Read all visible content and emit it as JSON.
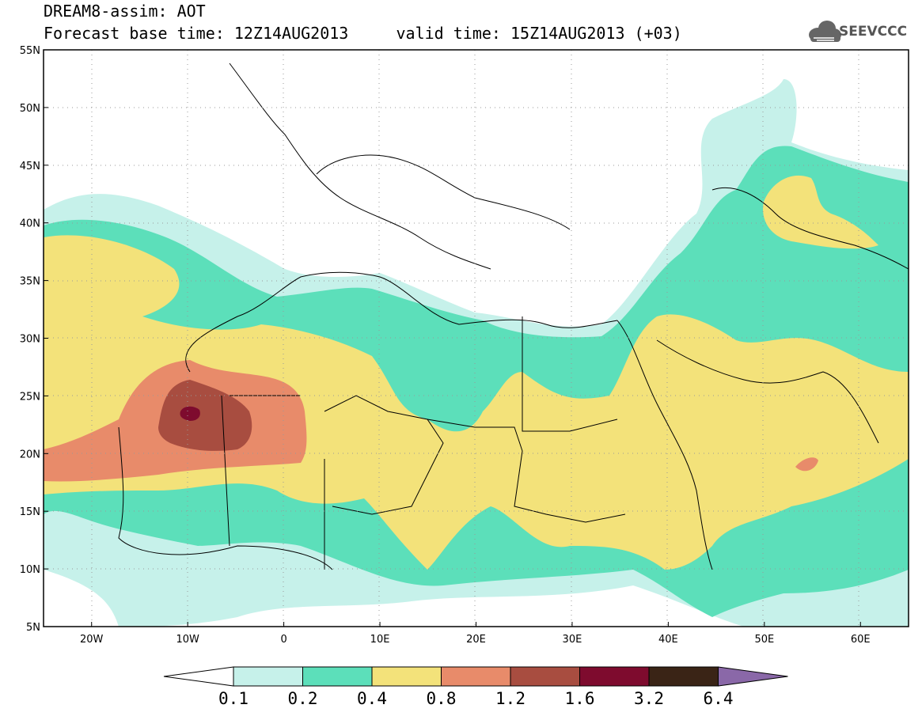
{
  "header": {
    "line1": "DREAM8-assim: AOT",
    "line2": "Forecast base time: 12Z14AUG2013     valid time: 15Z14AUG2013 (+03)"
  },
  "logo": {
    "text": "SEEVCCC",
    "icon": "cloud-icon"
  },
  "map": {
    "lon_range": [
      -25,
      65
    ],
    "lat_range": [
      5,
      55
    ],
    "lat_labels": [
      "5N",
      "10N",
      "15N",
      "20N",
      "25N",
      "30N",
      "35N",
      "40N",
      "45N",
      "50N",
      "55N"
    ],
    "lat_values": [
      5,
      10,
      15,
      20,
      25,
      30,
      35,
      40,
      45,
      50,
      55
    ],
    "lon_labels": [
      "20W",
      "10W",
      "0",
      "10E",
      "20E",
      "30E",
      "40E",
      "50E",
      "60E"
    ],
    "lon_values": [
      -20,
      -10,
      0,
      10,
      20,
      30,
      40,
      50,
      60
    ]
  },
  "colorbar": {
    "levels": [
      "0.1",
      "0.2",
      "0.4",
      "0.8",
      "1.2",
      "1.6",
      "3.2",
      "6.4"
    ],
    "colors": [
      "#c6f1ea",
      "#5cdfba",
      "#f3e27a",
      "#e88b6a",
      "#a84d40",
      "#7e0b2e",
      "#3a2416",
      "#8a68a8"
    ]
  }
}
